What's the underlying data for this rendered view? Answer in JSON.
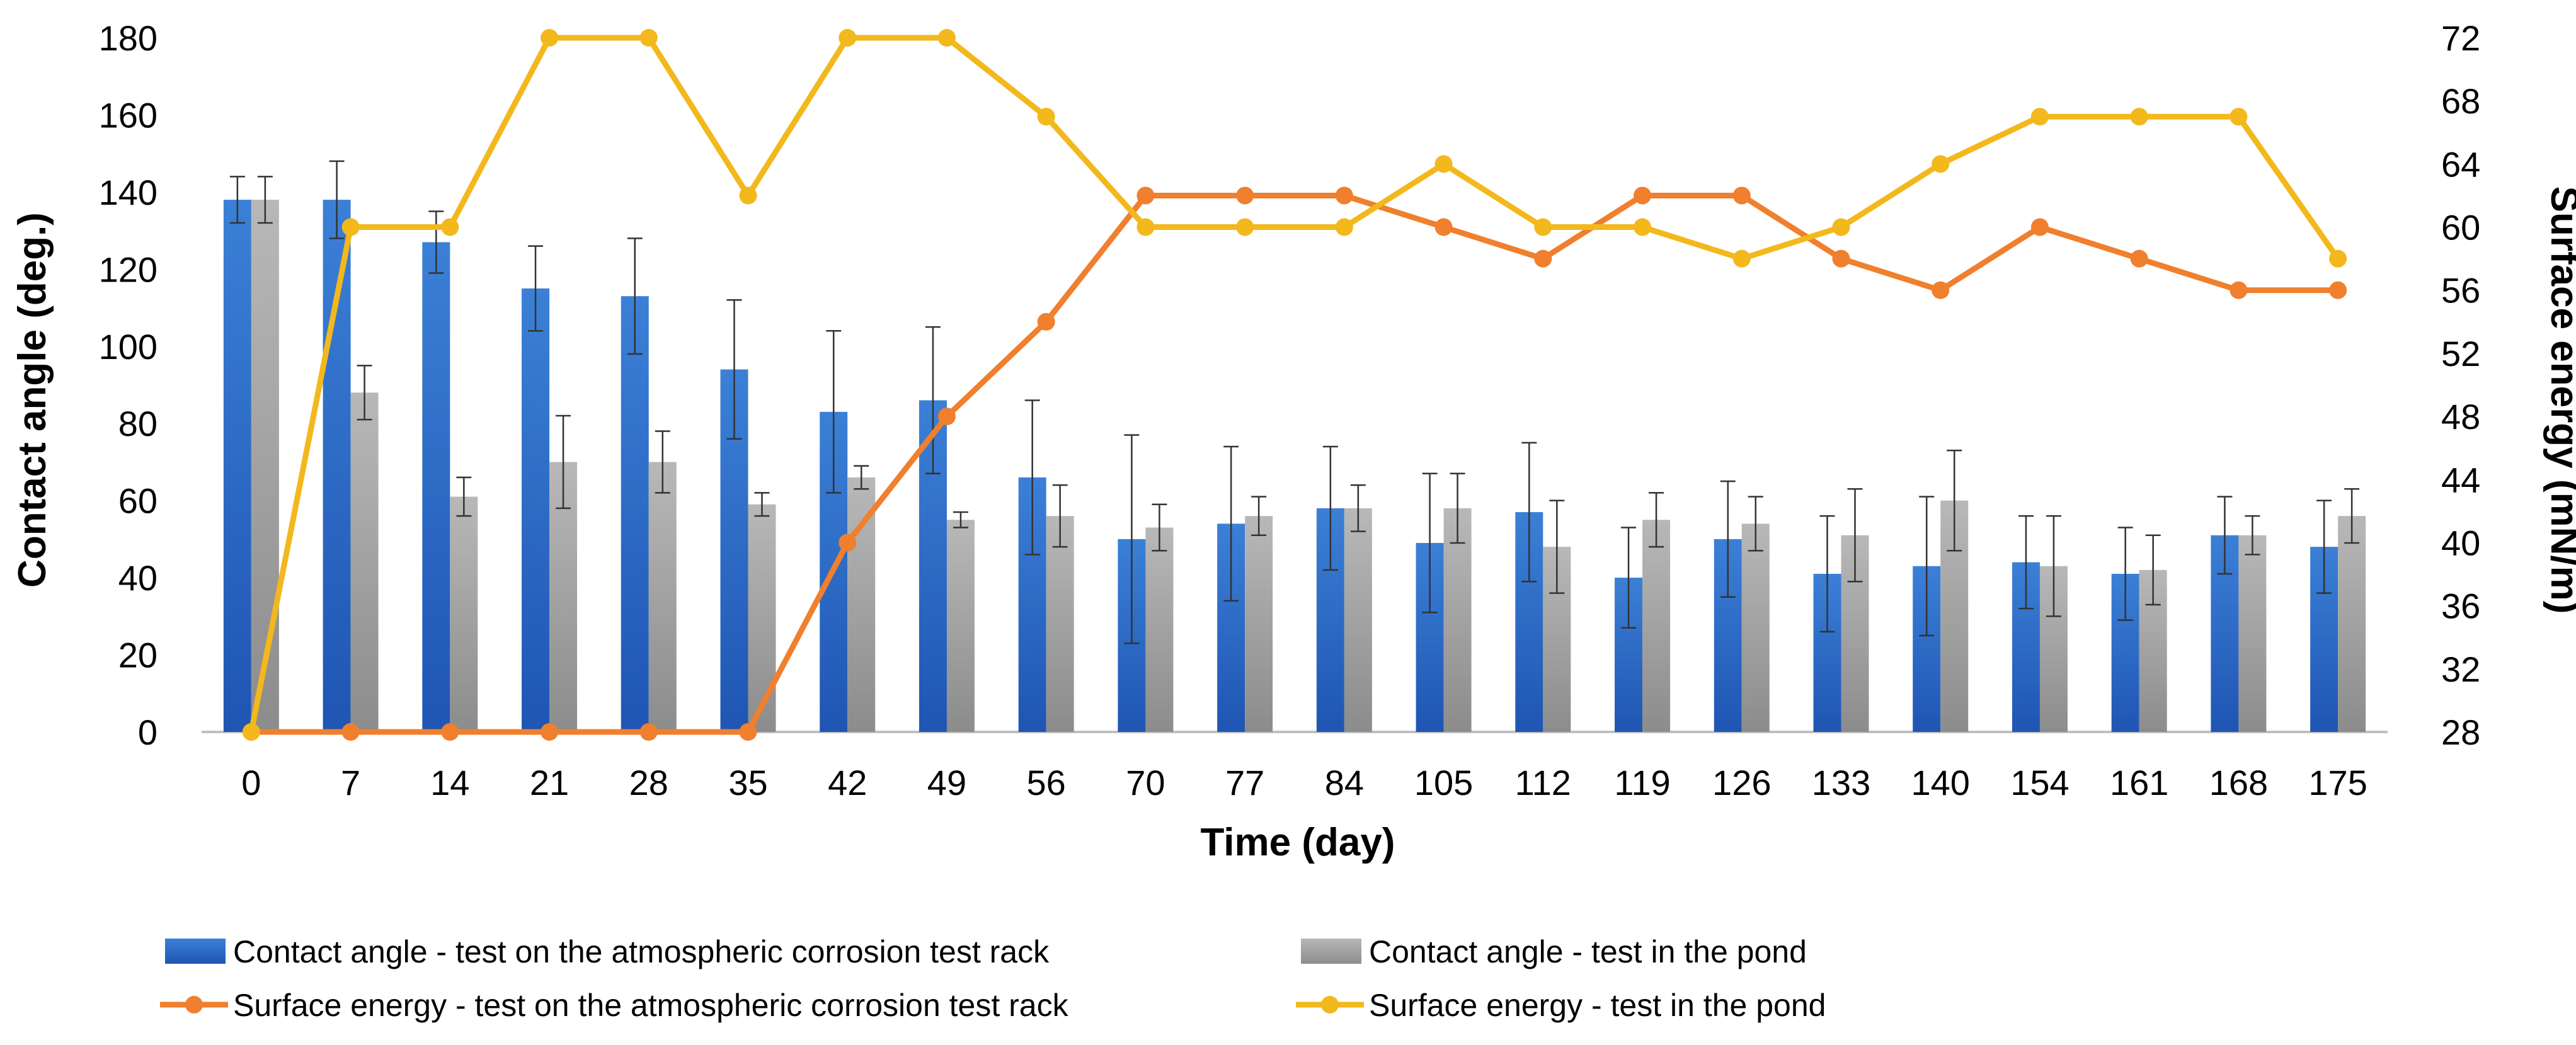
{
  "chart_data": {
    "type": "bar-line-combo",
    "title": "",
    "xlabel": "Time (day)",
    "ylabel": "Contact angle (deg.)",
    "y2label": "Surface energy (mN/m)",
    "ylim": [
      0,
      180
    ],
    "y_ticks": [
      0,
      20,
      40,
      60,
      80,
      100,
      120,
      140,
      160,
      180
    ],
    "y2lim": [
      28,
      72
    ],
    "y2_ticks": [
      28,
      32,
      36,
      40,
      44,
      48,
      52,
      56,
      60,
      64,
      68,
      72
    ],
    "categories": [
      "0",
      "7",
      "14",
      "21",
      "28",
      "35",
      "42",
      "49",
      "56",
      "70",
      "77",
      "84",
      "105",
      "112",
      "119",
      "126",
      "133",
      "140",
      "154",
      "161",
      "168",
      "175"
    ],
    "bar_series": [
      {
        "name": "Contact angle - test on  the atmospheric corrosion test rack",
        "color": "#2f6fc9",
        "values": [
          138,
          138,
          127,
          115,
          113,
          94,
          83,
          86,
          66,
          50,
          54,
          58,
          49,
          57,
          40,
          50,
          41,
          43,
          44,
          41,
          51,
          48
        ],
        "errors": [
          6,
          10,
          8,
          11,
          15,
          18,
          21,
          19,
          20,
          27,
          20,
          16,
          18,
          18,
          13,
          15,
          15,
          18,
          12,
          12,
          10,
          12
        ]
      },
      {
        "name": "Contact angle - test in the pond",
        "color": "#a6a6a6",
        "values": [
          138,
          88,
          61,
          70,
          70,
          59,
          66,
          55,
          56,
          53,
          56,
          58,
          58,
          48,
          55,
          54,
          51,
          60,
          43,
          42,
          51,
          56
        ],
        "errors": [
          6,
          7,
          5,
          12,
          8,
          3,
          3,
          2,
          8,
          6,
          5,
          6,
          9,
          12,
          7,
          7,
          12,
          13,
          13,
          9,
          5,
          7
        ]
      }
    ],
    "line_series": [
      {
        "name": "Surface energy - test on the atmospheric corrosion test rack",
        "color": "#f07f2e",
        "values": [
          28,
          28,
          28,
          28,
          28,
          28,
          40,
          48,
          54,
          62,
          62,
          62,
          60,
          58,
          62,
          62,
          58,
          56,
          60,
          58,
          56,
          56
        ]
      },
      {
        "name": "Surface energy - test in the pond",
        "color": "#f2b81c",
        "values": [
          28,
          60,
          60,
          72,
          72,
          62,
          72,
          72,
          67,
          60,
          60,
          60,
          64,
          60,
          60,
          58,
          60,
          64,
          67,
          67,
          67,
          58
        ]
      }
    ],
    "grid": false,
    "legend_position": "bottom"
  }
}
